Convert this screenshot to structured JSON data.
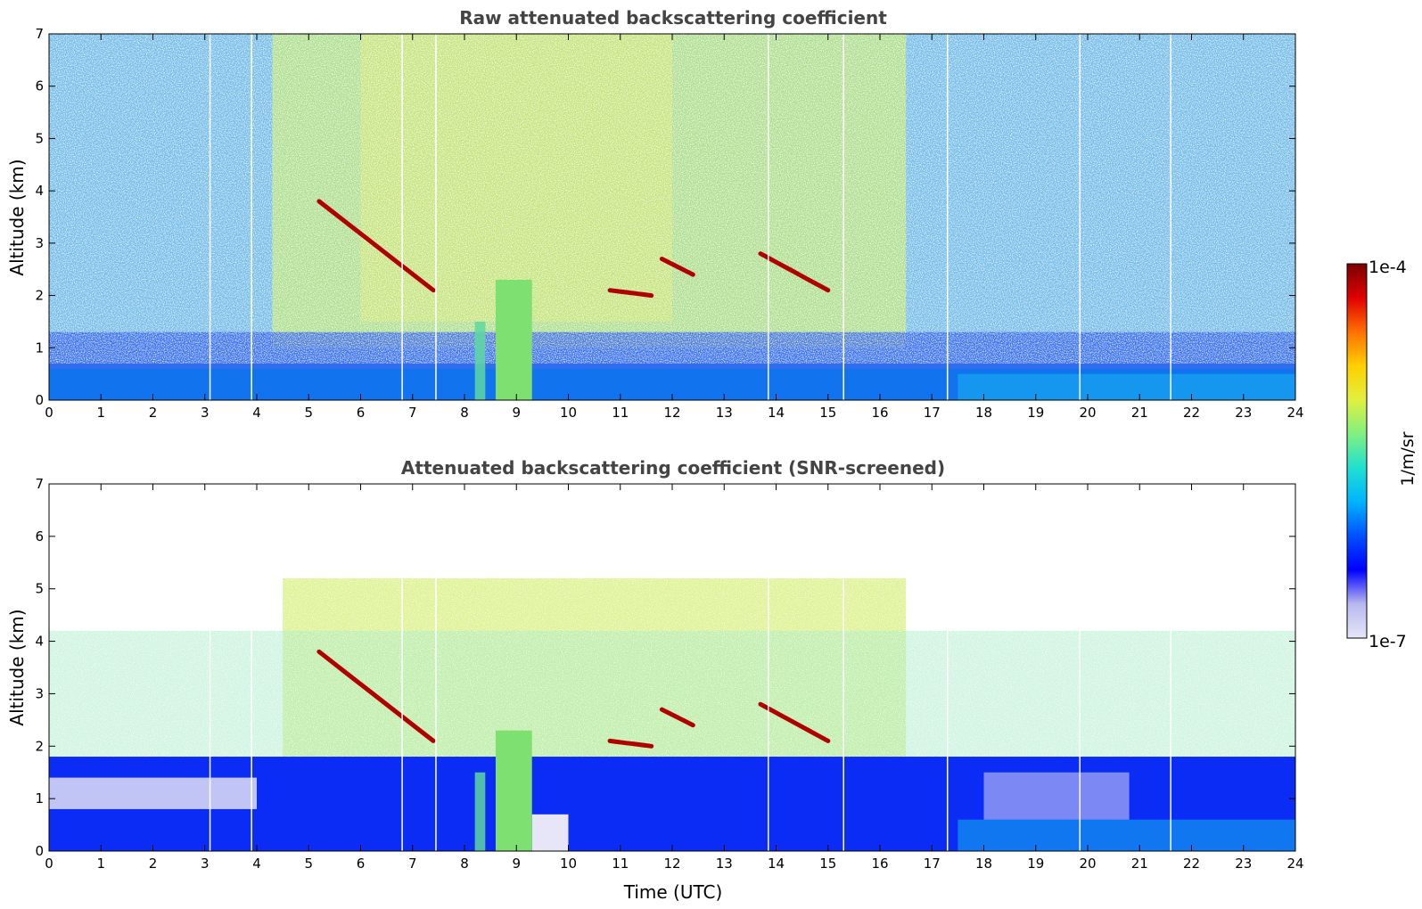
{
  "chart_data": [
    {
      "type": "heatmap",
      "title": "Raw attenuated backscattering coefficient",
      "xlabel": "",
      "ylabel": "Altitude (km)",
      "xlim": [
        0,
        24
      ],
      "ylim": [
        0,
        7
      ],
      "xticks": [
        "0",
        "1",
        "2",
        "3",
        "4",
        "5",
        "6",
        "7",
        "8",
        "9",
        "10",
        "11",
        "12",
        "13",
        "14",
        "15",
        "16",
        "17",
        "18",
        "19",
        "20",
        "21",
        "22",
        "23",
        "24"
      ],
      "yticks": [
        "0",
        "1",
        "2",
        "3",
        "4",
        "5",
        "6",
        "7"
      ],
      "grid": false,
      "features": {
        "boundary_layer_top_km": 0.6,
        "precipitation_fall_hours": [
          8.2,
          9.4
        ],
        "cloud_layers": [
          {
            "start_h": 5.2,
            "end_h": 7.4,
            "alt_start_km": 3.8,
            "alt_end_km": 2.1
          },
          {
            "start_h": 10.8,
            "end_h": 11.6,
            "alt_start_km": 2.1,
            "alt_end_km": 2.0
          },
          {
            "start_h": 11.8,
            "end_h": 12.4,
            "alt_start_km": 2.7,
            "alt_end_km": 2.4
          },
          {
            "start_h": 13.7,
            "end_h": 15.0,
            "alt_start_km": 2.8,
            "alt_end_km": 2.1
          }
        ]
      }
    },
    {
      "type": "heatmap",
      "title": "Attenuated backscattering coefficient (SNR-screened)",
      "xlabel": "Time (UTC)",
      "ylabel": "Altitude (km)",
      "xlim": [
        0,
        24
      ],
      "ylim": [
        0,
        7
      ],
      "xticks": [
        "0",
        "1",
        "2",
        "3",
        "4",
        "5",
        "6",
        "7",
        "8",
        "9",
        "10",
        "11",
        "12",
        "13",
        "14",
        "15",
        "16",
        "17",
        "18",
        "19",
        "20",
        "21",
        "22",
        "23",
        "24"
      ],
      "yticks": [
        "0",
        "1",
        "2",
        "3",
        "4",
        "5",
        "6",
        "7"
      ],
      "grid": false
    }
  ],
  "colorbar": {
    "label": "1/m/sr",
    "max_label": "1e-4",
    "min_label": "1e-7",
    "scale": "log",
    "range": [
      1e-07,
      0.0001
    ],
    "colormap": [
      "#e6e6f8",
      "#b8b8f0",
      "#0000ff",
      "#0050ff",
      "#00b4ff",
      "#20e0d0",
      "#80f080",
      "#e0f040",
      "#ffd000",
      "#ff7000",
      "#e00000",
      "#7a0000"
    ]
  }
}
